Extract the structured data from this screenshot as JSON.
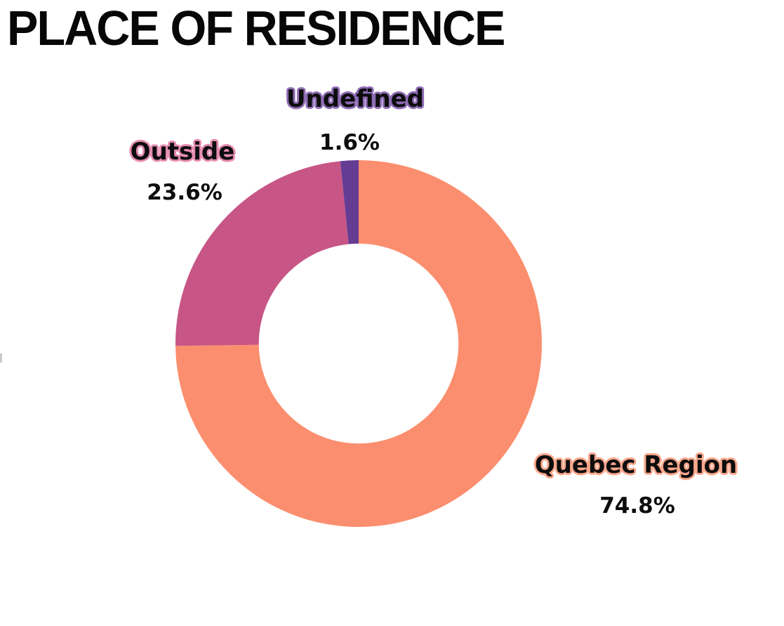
{
  "header": {
    "title": "PLACE OF RESIDENCE",
    "title_color": "#070707"
  },
  "chart_data": {
    "type": "pie",
    "subtype": "donut",
    "title": "PLACE OF RESIDENCE",
    "unit": "%",
    "start_angle_deg": 0,
    "direction": "clockwise",
    "inner_radius_ratio": 0.545,
    "legend": "none",
    "labels_position": "outside",
    "background": "#ffffff",
    "value_text_color": "#0d0d0d",
    "label_text_color": "#0d0d0d",
    "slices": [
      {
        "label": "Quebec Region",
        "value": 74.8,
        "value_label": "74.8%",
        "color": "#FB8E6E",
        "outline_color": "#FBA78C"
      },
      {
        "label": "Outside",
        "value": 23.6,
        "value_label": "23.6%",
        "color": "#C75586",
        "outline_color": "#E58CB0"
      },
      {
        "label": "Undefined",
        "value": 1.6,
        "value_label": "1.6%",
        "color": "#653C93",
        "outline_color": "#8E6CB5"
      }
    ]
  }
}
